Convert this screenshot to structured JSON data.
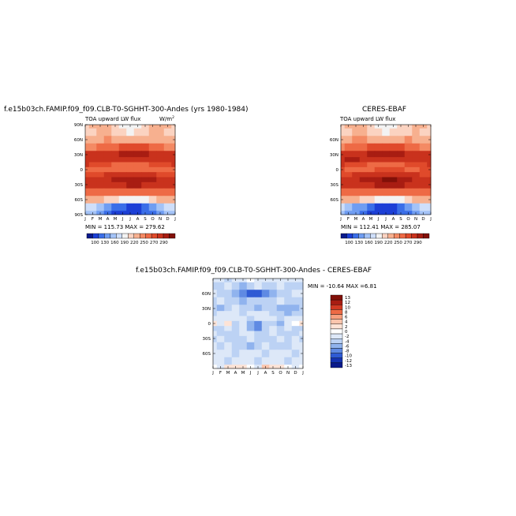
{
  "chart_data": [
    {
      "type": "heatmap",
      "title": "f.e15b03ch.FAMIP.f09_f09.CLB-T0-SGHHT-300-Andes (yrs 1980-1984)",
      "subtitle_left": "TOA upward LW flux",
      "units": "W/m",
      "units_sup": "2",
      "xlabel": "",
      "ylabel": "",
      "x_ticks": [
        "J",
        "F",
        "M",
        "A",
        "M",
        "J",
        "J",
        "A",
        "S",
        "O",
        "N",
        "D",
        "J"
      ],
      "y_ticks": [
        "90N",
        "60N",
        "30N",
        "0",
        "30S",
        "60S",
        "90S"
      ],
      "y_range": [
        -90,
        90
      ],
      "stats": "MIN = 115.73  MAX = 279.62",
      "min": 115.73,
      "max": 279.62,
      "colorbar_labels": [
        "100",
        "130",
        "160",
        "190",
        "220",
        "250",
        "270",
        "290"
      ],
      "colorbar_colors": [
        "#0a1a8c",
        "#1c3fd6",
        "#3a6ee8",
        "#6f9df2",
        "#a4c3f7",
        "#cfdffa",
        "#f3f3f3",
        "#fbd3c1",
        "#f7b08f",
        "#f48a64",
        "#ee6a45",
        "#e04a2b",
        "#c9321d",
        "#a81d12",
        "#821008"
      ],
      "data_rows": [
        {
          "lat": 90,
          "values": [
            200,
            205,
            210,
            205,
            195,
            185,
            180,
            182,
            192,
            202,
            208,
            205,
            200
          ]
        },
        {
          "lat": 75,
          "values": [
            195,
            200,
            208,
            205,
            198,
            190,
            188,
            190,
            196,
            202,
            204,
            200,
            195
          ]
        },
        {
          "lat": 60,
          "values": [
            205,
            210,
            214,
            215,
            212,
            206,
            205,
            206,
            210,
            214,
            212,
            208,
            205
          ]
        },
        {
          "lat": 45,
          "values": [
            225,
            228,
            230,
            235,
            240,
            245,
            248,
            247,
            242,
            236,
            230,
            226,
            225
          ]
        },
        {
          "lat": 30,
          "values": [
            258,
            260,
            262,
            264,
            268,
            272,
            274,
            273,
            270,
            266,
            262,
            260,
            258
          ]
        },
        {
          "lat": 20,
          "values": [
            266,
            268,
            268,
            266,
            262,
            258,
            255,
            256,
            260,
            264,
            266,
            266,
            266
          ]
        },
        {
          "lat": 10,
          "values": [
            255,
            252,
            248,
            242,
            236,
            232,
            230,
            232,
            236,
            242,
            248,
            252,
            255
          ]
        },
        {
          "lat": 0,
          "values": [
            240,
            238,
            236,
            236,
            238,
            240,
            240,
            240,
            240,
            238,
            238,
            240,
            240
          ]
        },
        {
          "lat": -10,
          "values": [
            250,
            252,
            254,
            256,
            258,
            262,
            264,
            264,
            262,
            258,
            254,
            252,
            250
          ]
        },
        {
          "lat": -20,
          "values": [
            262,
            262,
            264,
            268,
            272,
            276,
            278,
            277,
            274,
            270,
            266,
            263,
            262
          ]
        },
        {
          "lat": -30,
          "values": [
            262,
            262,
            262,
            264,
            266,
            268,
            270,
            269,
            267,
            265,
            263,
            262,
            262
          ]
        },
        {
          "lat": -45,
          "values": [
            238,
            238,
            236,
            234,
            232,
            230,
            230,
            230,
            231,
            233,
            235,
            237,
            238
          ]
        },
        {
          "lat": -60,
          "values": [
            210,
            208,
            204,
            198,
            190,
            182,
            180,
            181,
            186,
            194,
            202,
            208,
            210
          ]
        },
        {
          "lat": -75,
          "values": [
            172,
            162,
            150,
            140,
            130,
            122,
            118,
            120,
            128,
            140,
            155,
            166,
            172
          ]
        },
        {
          "lat": -90,
          "values": [
            160,
            150,
            138,
            128,
            120,
            116,
            115,
            117,
            124,
            134,
            146,
            156,
            160
          ]
        }
      ]
    },
    {
      "type": "heatmap",
      "title": "CERES-EBAF",
      "subtitle_left": "TOA upward LW flux",
      "xlabel": "",
      "ylabel": "",
      "x_ticks": [
        "J",
        "F",
        "M",
        "A",
        "M",
        "J",
        "J",
        "A",
        "S",
        "O",
        "N",
        "D",
        "J"
      ],
      "y_ticks": [
        "60N",
        "30N",
        "0",
        "30S",
        "60S"
      ],
      "y_range": [
        -90,
        90
      ],
      "stats": "MIN = 112.41  MAX = 285.07",
      "min": 112.41,
      "max": 285.07,
      "colorbar_labels": [
        "100",
        "130",
        "160",
        "190",
        "220",
        "250",
        "270",
        "290"
      ],
      "data_rows": [
        {
          "lat": 90,
          "values": [
            198,
            204,
            210,
            204,
            194,
            184,
            180,
            181,
            190,
            200,
            206,
            204,
            198
          ]
        },
        {
          "lat": 75,
          "values": [
            194,
            200,
            207,
            204,
            197,
            190,
            187,
            189,
            195,
            201,
            203,
            199,
            194
          ]
        },
        {
          "lat": 60,
          "values": [
            206,
            211,
            215,
            216,
            213,
            207,
            206,
            207,
            211,
            215,
            213,
            209,
            206
          ]
        },
        {
          "lat": 45,
          "values": [
            226,
            229,
            232,
            237,
            242,
            247,
            250,
            249,
            244,
            238,
            232,
            227,
            226
          ]
        },
        {
          "lat": 30,
          "values": [
            260,
            262,
            264,
            266,
            270,
            275,
            277,
            276,
            272,
            268,
            264,
            262,
            260
          ]
        },
        {
          "lat": 20,
          "values": [
            268,
            270,
            270,
            268,
            264,
            260,
            257,
            258,
            262,
            266,
            268,
            268,
            268
          ]
        },
        {
          "lat": 10,
          "values": [
            257,
            254,
            250,
            244,
            238,
            234,
            232,
            234,
            238,
            244,
            250,
            254,
            257
          ]
        },
        {
          "lat": 0,
          "values": [
            242,
            240,
            238,
            238,
            240,
            242,
            242,
            242,
            242,
            240,
            240,
            242,
            242
          ]
        },
        {
          "lat": -10,
          "values": [
            252,
            254,
            256,
            258,
            261,
            265,
            267,
            267,
            264,
            260,
            256,
            254,
            252
          ]
        },
        {
          "lat": -20,
          "values": [
            264,
            264,
            266,
            270,
            275,
            280,
            283,
            282,
            278,
            272,
            268,
            265,
            264
          ]
        },
        {
          "lat": -30,
          "values": [
            264,
            264,
            264,
            266,
            268,
            270,
            272,
            271,
            269,
            267,
            265,
            264,
            264
          ]
        },
        {
          "lat": -45,
          "values": [
            240,
            240,
            238,
            236,
            234,
            232,
            232,
            232,
            233,
            235,
            237,
            239,
            240
          ]
        },
        {
          "lat": -60,
          "values": [
            212,
            210,
            206,
            200,
            192,
            184,
            182,
            183,
            188,
            196,
            204,
            210,
            212
          ]
        },
        {
          "lat": -75,
          "values": [
            170,
            160,
            148,
            138,
            128,
            120,
            115,
            118,
            126,
            138,
            153,
            164,
            170
          ]
        },
        {
          "lat": -90,
          "values": [
            158,
            148,
            136,
            126,
            118,
            114,
            113,
            115,
            122,
            132,
            144,
            154,
            158
          ]
        }
      ]
    },
    {
      "type": "heatmap",
      "title": "f.e15b03ch.FAMIP.f09_f09.CLB-T0-SGHHT-300-Andes - CERES-EBAF",
      "xlabel": "",
      "ylabel": "",
      "x_ticks": [
        "J",
        "F",
        "M",
        "A",
        "M",
        "J",
        "J",
        "A",
        "S",
        "O",
        "N",
        "D",
        "J"
      ],
      "y_ticks": [
        "60N",
        "30N",
        "0",
        "30S",
        "60S"
      ],
      "y_range": [
        -90,
        90
      ],
      "stats_label": "MIN = -10.64  MAX =",
      "stats_value": "6.81",
      "min": -10.64,
      "max": 6.81,
      "colorbar_labels": [
        "13",
        "12",
        "10",
        "8",
        "6",
        "4",
        "2",
        "0",
        "-2",
        "-4",
        "-6",
        "-8",
        "-10",
        "-12",
        "-13"
      ],
      "colorbar_colors": [
        "#821008",
        "#a81d12",
        "#d13a22",
        "#ee6a45",
        "#f7a07f",
        "#fbc5ad",
        "#fde3d6",
        "#ffffff",
        "#dde8f8",
        "#bcd2f4",
        "#90b3ee",
        "#5f8ae3",
        "#2f5bd4",
        "#1432b0",
        "#0a1a8c"
      ],
      "data_rows": [
        {
          "lat": 90,
          "values": [
            -2,
            -1,
            -3,
            -2,
            -1,
            0,
            -2,
            -1,
            -2,
            -1,
            -2,
            -1,
            -2
          ]
        },
        {
          "lat": 75,
          "values": [
            -3,
            -4,
            -2,
            -3,
            -5,
            -3,
            -2,
            -4,
            -3,
            -2,
            -3,
            -4,
            -3
          ]
        },
        {
          "lat": 60,
          "values": [
            -2,
            -3,
            -4,
            -6,
            -8,
            -10,
            -9,
            -7,
            -5,
            -4,
            -3,
            -2,
            -2
          ]
        },
        {
          "lat": 45,
          "values": [
            -3,
            -2,
            -3,
            -4,
            -5,
            -4,
            -3,
            -4,
            -3,
            -2,
            -3,
            -4,
            -3
          ]
        },
        {
          "lat": 30,
          "values": [
            -4,
            -5,
            -3,
            -2,
            -3,
            -4,
            -5,
            -4,
            -3,
            -5,
            -6,
            -5,
            -4
          ]
        },
        {
          "lat": 20,
          "values": [
            -3,
            -2,
            -1,
            -2,
            -3,
            -2,
            -1,
            -2,
            -3,
            -4,
            -5,
            -4,
            -3
          ]
        },
        {
          "lat": 10,
          "values": [
            -2,
            -1,
            -2,
            -1,
            -2,
            -3,
            -2,
            -1,
            -2,
            -3,
            -2,
            -1,
            -2
          ]
        },
        {
          "lat": 0,
          "values": [
            3,
            -1,
            2,
            -4,
            -2,
            -6,
            -8,
            -4,
            -3,
            -5,
            -2,
            1,
            3
          ]
        },
        {
          "lat": -10,
          "values": [
            -4,
            -3,
            -2,
            -3,
            -2,
            -5,
            -7,
            -4,
            -2,
            -3,
            -2,
            -3,
            -4
          ]
        },
        {
          "lat": -20,
          "values": [
            -2,
            -3,
            -4,
            -3,
            -2,
            -2,
            -4,
            -3,
            -2,
            -3,
            -4,
            -3,
            -2
          ]
        },
        {
          "lat": -30,
          "values": [
            -3,
            -2,
            -3,
            -4,
            -3,
            -2,
            -3,
            -4,
            -3,
            -2,
            -3,
            -2,
            -3
          ]
        },
        {
          "lat": -45,
          "values": [
            -2,
            -3,
            -2,
            -3,
            -4,
            -5,
            -3,
            -2,
            -3,
            -4,
            -3,
            -2,
            -2
          ]
        },
        {
          "lat": -60,
          "values": [
            -2,
            -1,
            -2,
            -3,
            -2,
            -1,
            -2,
            -3,
            -2,
            -1,
            -2,
            -3,
            -2
          ]
        },
        {
          "lat": -75,
          "values": [
            -1,
            -2,
            -3,
            -2,
            -1,
            -2,
            -3,
            -2,
            -1,
            -2,
            -3,
            -2,
            -1
          ]
        },
        {
          "lat": -90,
          "values": [
            1,
            -1,
            2,
            3,
            2,
            1,
            -1,
            4,
            3,
            2,
            1,
            -1,
            1
          ]
        }
      ]
    }
  ]
}
